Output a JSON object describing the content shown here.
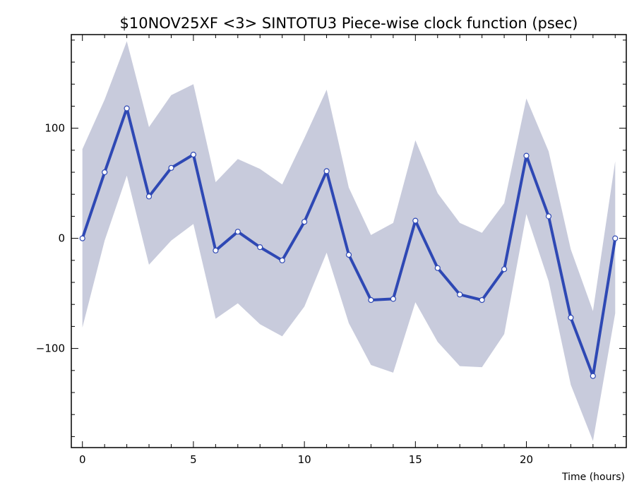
{
  "chart_data": {
    "type": "line",
    "title": "$10NOV25XF <3>  SINTOTU3  Piece-wise clock function (psec)",
    "xlabel": "Time (hours)",
    "ylabel": "",
    "xlim": [
      -0.5,
      24.5
    ],
    "ylim": [
      -190,
      185
    ],
    "x_ticks": [
      0,
      5,
      10,
      15,
      20
    ],
    "y_ticks": [
      -100,
      0,
      100
    ],
    "grid": false,
    "legend": "none",
    "line_color": "#2e48b4",
    "band_color": "#c8cbdc",
    "series": [
      {
        "x": [
          0,
          1,
          2,
          3,
          4,
          5,
          6,
          7,
          8,
          9,
          10,
          11,
          12,
          13,
          14,
          15,
          16,
          17,
          18,
          19,
          20,
          21,
          22,
          23,
          24
        ],
        "values": [
          0,
          60,
          118,
          38,
          64,
          76,
          -11,
          6,
          -8,
          -20,
          15,
          61,
          -15,
          -56,
          -55,
          16,
          -27,
          -51,
          -56,
          -28,
          75,
          20,
          -72,
          -125,
          0
        ],
        "band_upper": [
          81,
          126,
          179,
          101,
          130,
          140,
          51,
          72,
          63,
          49,
          91,
          135,
          46,
          3,
          14,
          89,
          41,
          14,
          5,
          32,
          127,
          79,
          -10,
          -66,
          70
        ],
        "band_lower": [
          -81,
          -2,
          57,
          -24,
          -2,
          13,
          -73,
          -59,
          -78,
          -89,
          -62,
          -13,
          -77,
          -115,
          -122,
          -58,
          -94,
          -116,
          -117,
          -87,
          22,
          -39,
          -133,
          -184,
          -68
        ]
      }
    ]
  }
}
